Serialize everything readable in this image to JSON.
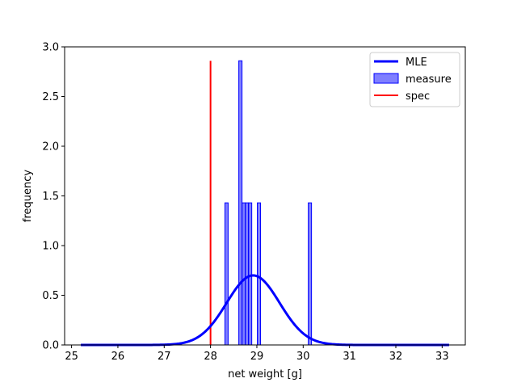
{
  "chart_data": {
    "type": "histogram+line",
    "title": "",
    "xlabel": "net weight [g]",
    "ylabel": "frequency",
    "xlim": [
      24.85,
      33.5
    ],
    "ylim": [
      0,
      3.0
    ],
    "xticks": [
      25,
      26,
      27,
      28,
      29,
      30,
      31,
      32,
      33
    ],
    "yticks": [
      0.0,
      0.5,
      1.0,
      1.5,
      2.0,
      2.5,
      3.0
    ],
    "xtick_labels": [
      "25",
      "26",
      "27",
      "28",
      "29",
      "30",
      "31",
      "32",
      "33"
    ],
    "ytick_labels": [
      "0.0",
      "0.5",
      "1.0",
      "1.5",
      "2.0",
      "2.5",
      "3.0"
    ],
    "grid": false,
    "legend_position": "top-right",
    "series": [
      {
        "name": "MLE",
        "type": "line",
        "color": "#0000ff",
        "distribution": "normal",
        "mean": 28.92,
        "sd": 0.57,
        "x_range": [
          25.2,
          33.15
        ]
      },
      {
        "name": "measure",
        "type": "bar",
        "color": "#0000ff",
        "alpha": 0.5,
        "bins": [
          {
            "x0": 28.31,
            "x1": 28.38,
            "y": 1.43
          },
          {
            "x0": 28.61,
            "x1": 28.68,
            "y": 2.86
          },
          {
            "x0": 28.68,
            "x1": 28.75,
            "y": 1.43
          },
          {
            "x0": 28.75,
            "x1": 28.82,
            "y": 1.43
          },
          {
            "x0": 28.82,
            "x1": 28.89,
            "y": 1.43
          },
          {
            "x0": 29.01,
            "x1": 29.08,
            "y": 1.43
          },
          {
            "x0": 30.11,
            "x1": 30.18,
            "y": 1.43
          }
        ]
      },
      {
        "name": "spec",
        "type": "vline",
        "color": "#ff0000",
        "x": 28.0,
        "y_range": [
          0,
          2.86
        ]
      }
    ]
  }
}
